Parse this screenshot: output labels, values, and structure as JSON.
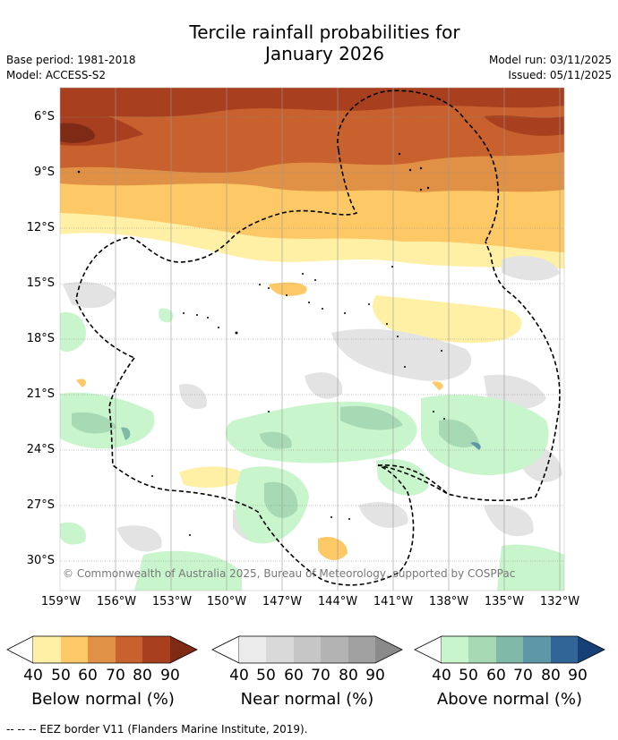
{
  "title_line1": "Tercile rainfall probabilities for",
  "title_line2": "January 2026",
  "meta": {
    "base_period": "Base period: 1981-2018",
    "model": "Model: ACCESS-S2",
    "model_run": "Model run: 03/11/2025",
    "issued": "Issued: 05/11/2025"
  },
  "lat_labels": [
    "6°S",
    "9°S",
    "12°S",
    "15°S",
    "18°S",
    "21°S",
    "24°S",
    "27°S",
    "30°S"
  ],
  "lon_labels": [
    "159°W",
    "156°W",
    "153°W",
    "150°W",
    "147°W",
    "144°W",
    "141°W",
    "138°W",
    "135°W",
    "132°W"
  ],
  "copyright": "© Commonwealth of Australia 2025, Bureau of Meteorology, supported by COSPPac",
  "colorbars": [
    {
      "label": "Below normal (%)",
      "ticks": [
        "40",
        "50",
        "60",
        "70",
        "80",
        "90"
      ],
      "colors": [
        "#fff0a6",
        "#fdc966",
        "#e19146",
        "#c8612d",
        "#a8401f",
        "#7f2a14"
      ]
    },
    {
      "label": "Near normal (%)",
      "ticks": [
        "40",
        "50",
        "60",
        "70",
        "80",
        "90"
      ],
      "colors": [
        "#ebebeb",
        "#d9d9d9",
        "#c6c6c6",
        "#b3b3b3",
        "#a0a0a0",
        "#8a8a8a"
      ]
    },
    {
      "label": "Above normal (%)",
      "ticks": [
        "40",
        "50",
        "60",
        "70",
        "80",
        "90"
      ],
      "colors": [
        "#c9f5cc",
        "#a6d9b4",
        "#80b9a8",
        "#5e97a6",
        "#326597",
        "#173f78"
      ]
    }
  ],
  "footer": "-- -- -- EEZ border V11 (Flanders Marine Institute, 2019)."
}
